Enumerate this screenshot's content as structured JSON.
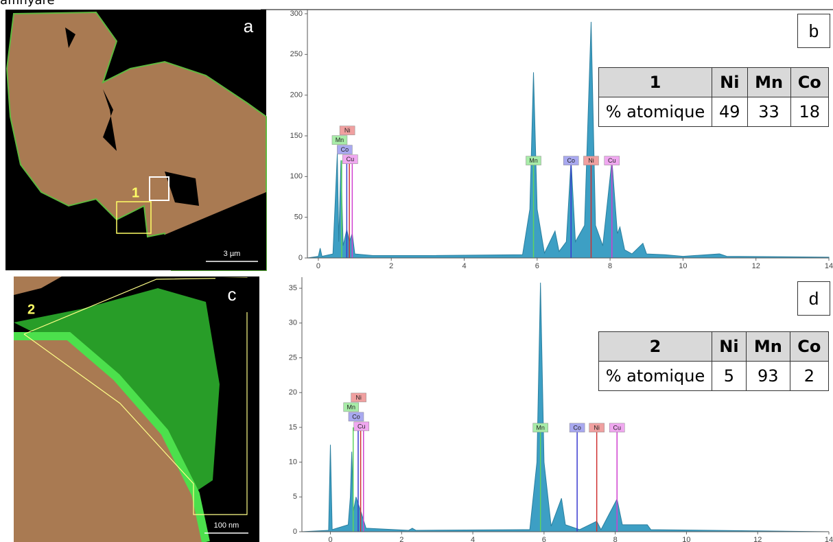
{
  "caption_fragment": "affinyare",
  "images": [
    {
      "panel": "a",
      "region": "1",
      "scale": "3 µm"
    },
    {
      "panel": "c",
      "region": "2",
      "scale": "100 nm"
    }
  ],
  "chart_data": [
    {
      "type": "area",
      "panel": "b",
      "xlim": [
        -0.3,
        14
      ],
      "xticks": [
        0,
        2,
        4,
        6,
        8,
        10,
        12,
        14
      ],
      "ylim": [
        0,
        300
      ],
      "yticks": [
        0,
        50,
        100,
        150,
        200,
        250,
        300
      ],
      "series": [
        {
          "color": "#3d9fc4",
          "x": [
            -0.3,
            0,
            0.05,
            0.1,
            0.4,
            0.52,
            0.56,
            0.62,
            0.68,
            0.78,
            0.85,
            0.93,
            1.0,
            1.5,
            3,
            5.6,
            5.8,
            5.9,
            6.0,
            6.2,
            6.49,
            6.6,
            6.8,
            6.93,
            7.05,
            7.3,
            7.48,
            7.6,
            7.8,
            8.05,
            8.2,
            8.27,
            8.4,
            8.6,
            8.9,
            9.0,
            9.5,
            10,
            11,
            11.2,
            14
          ],
          "values": [
            0,
            2,
            12,
            2,
            5,
            128,
            20,
            120,
            15,
            35,
            20,
            30,
            5,
            3,
            3,
            4,
            60,
            228,
            60,
            6,
            33,
            8,
            20,
            120,
            20,
            40,
            290,
            40,
            15,
            120,
            30,
            38,
            10,
            5,
            18,
            5,
            4,
            2,
            5,
            2,
            1
          ]
        }
      ],
      "element_lines": [
        {
          "name": "Mn",
          "color": "#5fd35f",
          "label_color": "#a8eca8",
          "x": [
            0.64,
            5.9
          ],
          "values": [
            120,
            120
          ]
        },
        {
          "name": "Co",
          "color": "#3a3ad0",
          "label_color": "#a9a9f0",
          "x": [
            0.78,
            6.93
          ],
          "values": [
            120,
            120
          ]
        },
        {
          "name": "Ni",
          "color": "#d03030",
          "label_color": "#f0a0a0",
          "x": [
            0.85,
            7.48
          ],
          "values": [
            120,
            120
          ]
        },
        {
          "name": "Cu",
          "color": "#d040d0",
          "label_color": "#f0a8f0",
          "x": [
            0.93,
            8.05
          ],
          "values": [
            120,
            120
          ]
        }
      ],
      "table": {
        "header": [
          "1",
          "Ni",
          "Mn",
          "Co"
        ],
        "rows": [
          [
            "% atomique",
            49,
            33,
            18
          ]
        ]
      }
    },
    {
      "type": "area",
      "panel": "d",
      "xlim": [
        -0.8,
        14
      ],
      "xticks": [
        0,
        2,
        4,
        6,
        8,
        10,
        12,
        14
      ],
      "ylim": [
        0,
        36
      ],
      "yticks": [
        0,
        5,
        10,
        15,
        20,
        25,
        30,
        35
      ],
      "series": [
        {
          "color": "#3d9fc4",
          "x": [
            -0.8,
            -0.05,
            0,
            0.05,
            0.5,
            0.56,
            0.6,
            0.65,
            0.72,
            0.78,
            0.85,
            1,
            2.2,
            2.3,
            2.4,
            5.6,
            5.8,
            5.9,
            6.0,
            6.2,
            6.49,
            6.6,
            7.0,
            7.48,
            7.6,
            8.05,
            8.2,
            8.9,
            9,
            14
          ],
          "values": [
            0,
            0.2,
            12.5,
            0.3,
            1,
            5,
            11.5,
            3,
            5,
            4,
            3,
            0.5,
            0.2,
            0.5,
            0.2,
            0.3,
            10,
            35.8,
            10,
            0.8,
            4.8,
            1,
            0.3,
            1.5,
            0.3,
            4.7,
            1,
            1,
            0.3,
            0
          ]
        }
      ],
      "element_lines": [
        {
          "name": "Mn",
          "color": "#5fd35f",
          "label_color": "#a8eca8",
          "x": [
            0.64,
            5.9
          ],
          "values": [
            15,
            15
          ]
        },
        {
          "name": "Co",
          "color": "#3a3ad0",
          "label_color": "#a9a9f0",
          "x": [
            0.78,
            6.93
          ],
          "values": [
            15,
            15
          ]
        },
        {
          "name": "Ni",
          "color": "#d03030",
          "label_color": "#f0a0a0",
          "x": [
            0.85,
            7.48
          ],
          "values": [
            15,
            15
          ]
        },
        {
          "name": "Cu",
          "color": "#d040d0",
          "label_color": "#f0a8f0",
          "x": [
            0.93,
            8.05
          ],
          "values": [
            15,
            15
          ]
        }
      ],
      "table": {
        "header": [
          "2",
          "Ni",
          "Mn",
          "Co"
        ],
        "rows": [
          [
            "% atomique",
            5,
            93,
            2
          ]
        ]
      }
    }
  ]
}
